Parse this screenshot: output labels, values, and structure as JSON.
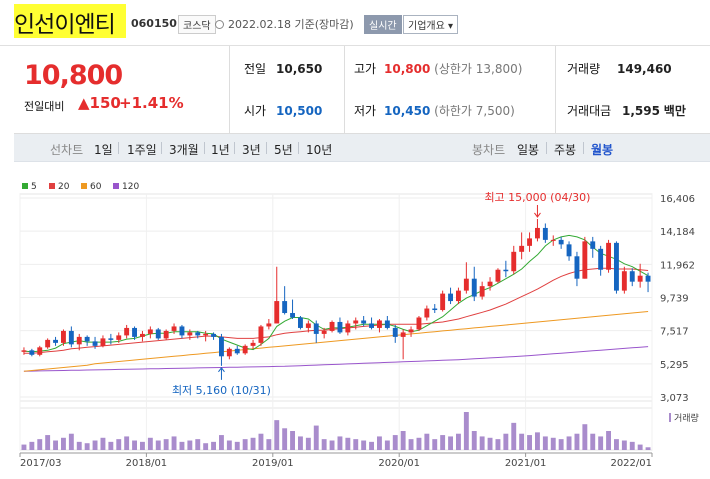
{
  "header": {
    "stock_name": "인선이엔티",
    "stock_code": "060150",
    "market": "코스닥",
    "date_text": "2022.02.18 기준(장마감)",
    "realtime_button": "실시간",
    "company_overview": "기업개요 ▾"
  },
  "price": {
    "current": "10,800",
    "change_label": "전일대비",
    "change_value": "▲150",
    "change_pct": "+1.41%"
  },
  "summary": {
    "prev_close": {
      "label": "전일",
      "value": "10,650"
    },
    "high": {
      "label": "고가",
      "value": "10,800",
      "sub": "(상한가 13,800)"
    },
    "volume": {
      "label": "거래량",
      "value": "149,460"
    },
    "open": {
      "label": "시가",
      "value": "10,500"
    },
    "low": {
      "label": "저가",
      "value": "10,450",
      "sub": "(하한가 7,500)"
    },
    "turnover": {
      "label": "거래대금",
      "value": "1,595",
      "unit": "백만"
    }
  },
  "toolbar": {
    "line_label": "선차트",
    "periods": [
      "1일",
      "1주일",
      "3개월",
      "1년",
      "3년",
      "5년",
      "10년"
    ],
    "candle_label": "봉차트",
    "candle_options": [
      "일봉",
      "주봉",
      "월봉"
    ],
    "selected": "월봉"
  },
  "colors": {
    "up": "#e52d2d",
    "down": "#1565c0",
    "ma5": "#33aa33",
    "ma20": "#e04040",
    "ma60": "#ee9922",
    "ma120": "#9955cc",
    "volume": "#a98ccc"
  },
  "chart_data": {
    "type": "line",
    "legend": [
      {
        "name": "5",
        "color": "#33aa33"
      },
      {
        "name": "20",
        "color": "#e04040"
      },
      {
        "name": "60",
        "color": "#ee9922"
      },
      {
        "name": "120",
        "color": "#9955cc"
      }
    ],
    "y_ticks": [
      "16,406",
      "14,184",
      "11,962",
      "9,739",
      "7,517",
      "5,295",
      "3,073"
    ],
    "ylim": [
      3073,
      16406
    ],
    "x_ticks": [
      "2017/03",
      "2018/01",
      "2019/01",
      "2020/01",
      "2021/01",
      "2022/01"
    ],
    "annotations": {
      "high": "최고 15,000 (04/30)",
      "low": "최저 5,160 (10/31)"
    },
    "volume_label": "거래량",
    "candles": [
      [
        6100,
        6400,
        5900,
        6200
      ],
      [
        6200,
        6300,
        5800,
        5900
      ],
      [
        5900,
        6500,
        5800,
        6400
      ],
      [
        6400,
        7000,
        6300,
        6900
      ],
      [
        6900,
        7100,
        6500,
        6700
      ],
      [
        6700,
        7600,
        6500,
        7500
      ],
      [
        7500,
        7800,
        6400,
        6600
      ],
      [
        6600,
        7300,
        6200,
        7100
      ],
      [
        7100,
        7200,
        6500,
        6800
      ],
      [
        6800,
        7100,
        6300,
        6500
      ],
      [
        6500,
        7200,
        6400,
        7000
      ],
      [
        7000,
        7300,
        6600,
        6900
      ],
      [
        6900,
        7400,
        6700,
        7200
      ],
      [
        7200,
        7900,
        7000,
        7700
      ],
      [
        7700,
        7800,
        6900,
        7100
      ],
      [
        7100,
        7500,
        6800,
        7300
      ],
      [
        7300,
        7800,
        7000,
        7600
      ],
      [
        7600,
        7700,
        6900,
        7000
      ],
      [
        7000,
        7600,
        6900,
        7500
      ],
      [
        7500,
        8000,
        7300,
        7800
      ],
      [
        7800,
        7900,
        7000,
        7200
      ],
      [
        7200,
        7600,
        6900,
        7400
      ],
      [
        7400,
        7500,
        7000,
        7200
      ],
      [
        7200,
        7500,
        6800,
        7300
      ],
      [
        7300,
        7400,
        6900,
        7100
      ],
      [
        7100,
        7300,
        5160,
        5800
      ],
      [
        5800,
        6400,
        5600,
        6300
      ],
      [
        6300,
        6500,
        5900,
        6000
      ],
      [
        6000,
        6600,
        5900,
        6500
      ],
      [
        6500,
        6900,
        6300,
        6700
      ],
      [
        6700,
        7900,
        6500,
        7800
      ],
      [
        7800,
        8300,
        7600,
        8000
      ],
      [
        8000,
        11800,
        8000,
        9500
      ],
      [
        9500,
        10500,
        8600,
        8700
      ],
      [
        8700,
        9600,
        8300,
        8400
      ],
      [
        8400,
        8500,
        7600,
        7700
      ],
      [
        7700,
        8200,
        7400,
        8000
      ],
      [
        8000,
        8200,
        6700,
        7300
      ],
      [
        7300,
        7700,
        7000,
        7500
      ],
      [
        7500,
        8200,
        7400,
        8100
      ],
      [
        8100,
        8400,
        7300,
        7400
      ],
      [
        7400,
        8200,
        7200,
        8000
      ],
      [
        8000,
        8400,
        7600,
        8200
      ],
      [
        8200,
        8500,
        7800,
        8000
      ],
      [
        8000,
        8400,
        7600,
        7700
      ],
      [
        7700,
        8300,
        7400,
        8200
      ],
      [
        8200,
        8500,
        7600,
        7700
      ],
      [
        7700,
        7900,
        6700,
        7100
      ],
      [
        7100,
        7600,
        5600,
        7400
      ],
      [
        7400,
        7800,
        7100,
        7600
      ],
      [
        7600,
        8500,
        7500,
        8400
      ],
      [
        8400,
        9200,
        8200,
        9000
      ],
      [
        9000,
        9300,
        8700,
        8900
      ],
      [
        8900,
        10200,
        8800,
        10000
      ],
      [
        10000,
        10400,
        9300,
        9500
      ],
      [
        9500,
        10400,
        9300,
        10200
      ],
      [
        10200,
        12100,
        10000,
        11000
      ],
      [
        11000,
        11800,
        9500,
        9800
      ],
      [
        9800,
        10800,
        9600,
        10500
      ],
      [
        10500,
        11100,
        10200,
        10800
      ],
      [
        10800,
        11700,
        10700,
        11600
      ],
      [
        11600,
        12200,
        11100,
        11500
      ],
      [
        11500,
        13200,
        11300,
        12800
      ],
      [
        12800,
        14100,
        12300,
        13200
      ],
      [
        13200,
        14100,
        12800,
        13700
      ],
      [
        13700,
        15000,
        13500,
        14400
      ],
      [
        14400,
        14700,
        13400,
        13600
      ],
      [
        13600,
        13900,
        13200,
        13600
      ],
      [
        13600,
        13800,
        13000,
        13300
      ],
      [
        13300,
        13500,
        12200,
        12500
      ],
      [
        12500,
        12800,
        10500,
        11000
      ],
      [
        11000,
        13800,
        11000,
        13500
      ],
      [
        13500,
        13800,
        12400,
        13000
      ],
      [
        13000,
        13200,
        11200,
        11600
      ],
      [
        11600,
        13600,
        11400,
        13400
      ],
      [
        13400,
        13500,
        10000,
        10200
      ],
      [
        10200,
        11800,
        10000,
        11500
      ],
      [
        11500,
        11700,
        10500,
        10800
      ],
      [
        10800,
        12000,
        10400,
        11200
      ],
      [
        11200,
        11400,
        10100,
        10800
      ]
    ],
    "ma5": [
      6150,
      6100,
      6150,
      6200,
      6350,
      6650,
      6750,
      6850,
      6750,
      6750,
      6750,
      6750,
      6800,
      6950,
      7000,
      7150,
      7300,
      7350,
      7350,
      7450,
      7450,
      7450,
      7450,
      7350,
      7300,
      6950,
      6750,
      6550,
      6350,
      6250,
      6600,
      7000,
      7800,
      8150,
      8400,
      8400,
      8300,
      7900,
      7600,
      7700,
      7700,
      7750,
      7850,
      7950,
      7950,
      7950,
      7950,
      7800,
      7600,
      7450,
      7550,
      7850,
      8150,
      8450,
      8900,
      9350,
      9700,
      9950,
      10200,
      10400,
      10700,
      11000,
      11300,
      11650,
      12150,
      12600,
      13200,
      13600,
      13800,
      13900,
      13800,
      13600,
      13100,
      12700,
      12500,
      12300,
      12000,
      11800,
      11500,
      11200
    ],
    "ma20": [
      6000,
      6000,
      6050,
      6100,
      6150,
      6200,
      6300,
      6350,
      6400,
      6450,
      6500,
      6550,
      6600,
      6650,
      6700,
      6750,
      6800,
      6850,
      6900,
      6950,
      7000,
      7050,
      7100,
      7150,
      7150,
      7100,
      7050,
      7000,
      7000,
      7000,
      7050,
      7100,
      7250,
      7350,
      7400,
      7450,
      7500,
      7550,
      7550,
      7600,
      7650,
      7700,
      7750,
      7800,
      7850,
      7900,
      7950,
      7950,
      7950,
      7950,
      7950,
      8000,
      8050,
      8100,
      8200,
      8300,
      8450,
      8600,
      8750,
      8900,
      9100,
      9300,
      9550,
      9800,
      10050,
      10300,
      10600,
      10900,
      11150,
      11350,
      11500,
      11600,
      11650,
      11700,
      11700,
      11650,
      11650,
      11650,
      11600,
      11550
    ],
    "ma60": [
      4800,
      4850,
      4900,
      4950,
      5000,
      5050,
      5100,
      5150,
      5200,
      5300,
      5350,
      5400,
      5450,
      5500,
      5550,
      5600,
      5650,
      5700,
      5750,
      5800,
      5850,
      5900,
      5950,
      6000,
      6050,
      6100,
      6150,
      6200,
      6250,
      6300,
      6350,
      6400,
      6450,
      6500,
      6550,
      6600,
      6650,
      6700,
      6750,
      6800,
      6850,
      6900,
      6950,
      7000,
      7050,
      7100,
      7150,
      7200,
      7250,
      7300,
      7350,
      7400,
      7450,
      7500,
      7550,
      7600,
      7650,
      7700,
      7750,
      7800,
      7850,
      7900,
      7950,
      8000,
      8050,
      8100,
      8150,
      8200,
      8250,
      8300,
      8350,
      8400,
      8450,
      8500,
      8550,
      8600,
      8650,
      8700,
      8750,
      8800
    ],
    "ma120": [
      4800,
      4810,
      4820,
      4830,
      4840,
      4850,
      4860,
      4870,
      4880,
      4890,
      4900,
      4910,
      4920,
      4930,
      4940,
      4950,
      4960,
      4970,
      4980,
      4990,
      5000,
      5010,
      5020,
      5030,
      5040,
      5050,
      5060,
      5070,
      5080,
      5090,
      5100,
      5110,
      5120,
      5130,
      5150,
      5170,
      5190,
      5210,
      5230,
      5250,
      5270,
      5290,
      5310,
      5330,
      5350,
      5370,
      5390,
      5410,
      5430,
      5450,
      5470,
      5490,
      5510,
      5530,
      5550,
      5570,
      5600,
      5630,
      5660,
      5690,
      5720,
      5750,
      5780,
      5810,
      5850,
      5890,
      5930,
      5970,
      6010,
      6050,
      6090,
      6130,
      6170,
      6210,
      6250,
      6290,
      6330,
      6370,
      6410,
      6450
    ],
    "volumes": [
      20,
      30,
      40,
      55,
      35,
      45,
      60,
      30,
      25,
      35,
      45,
      30,
      40,
      50,
      35,
      30,
      45,
      35,
      40,
      50,
      30,
      35,
      40,
      25,
      30,
      55,
      35,
      30,
      40,
      45,
      60,
      40,
      110,
      80,
      70,
      50,
      45,
      90,
      40,
      35,
      50,
      45,
      40,
      35,
      30,
      50,
      35,
      55,
      70,
      40,
      45,
      60,
      40,
      55,
      50,
      60,
      140,
      70,
      50,
      45,
      40,
      60,
      100,
      60,
      55,
      65,
      50,
      45,
      40,
      50,
      60,
      95,
      60,
      50,
      70,
      40,
      35,
      30,
      20,
      10
    ]
  }
}
